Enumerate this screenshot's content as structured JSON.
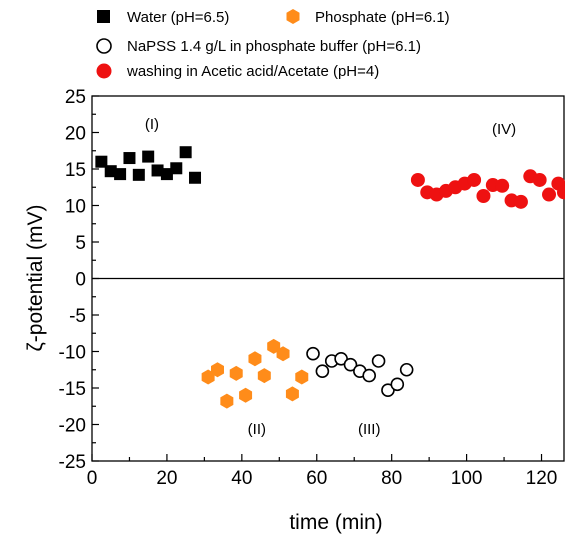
{
  "chart_data": {
    "type": "scatter",
    "xlabel": "time (min)",
    "ylabel": "ζ-potential (mV)",
    "xlim": [
      0,
      126
    ],
    "ylim": [
      -25,
      25
    ],
    "xticks": [
      0,
      20,
      40,
      60,
      80,
      100,
      120
    ],
    "yticks": [
      25,
      20,
      15,
      10,
      5,
      0,
      -5,
      -10,
      -15,
      -20,
      -25
    ],
    "zero_line": true,
    "grid": false,
    "legend_position": "top",
    "series": [
      {
        "name": "Water (pH=6.5)",
        "marker": "square",
        "color": "#000000",
        "fill": "#000000",
        "x": [
          2.5,
          5,
          7.5,
          10,
          12.5,
          15,
          17.5,
          20,
          22.5,
          25,
          27.5
        ],
        "y": [
          16.0,
          14.7,
          14.3,
          16.5,
          14.2,
          16.7,
          14.8,
          14.3,
          15.1,
          17.3,
          13.8
        ]
      },
      {
        "name": "Phosphate  (pH=6.1)",
        "marker": "hexagon",
        "color": "#FF8C1A",
        "fill": "#FF8C1A",
        "x": [
          31,
          33.5,
          36,
          38.5,
          41,
          43.5,
          46,
          48.5,
          51,
          53.5,
          56
        ],
        "y": [
          -13.5,
          -12.5,
          -16.8,
          -13.0,
          -16.0,
          -11.0,
          -13.3,
          -9.3,
          -10.3,
          -15.8,
          -13.5
        ]
      },
      {
        "name": "NaPSS 1.4 g/L in phosphate buffer (pH=6.1)",
        "marker": "circle-open",
        "color": "#000000",
        "fill": "#ffffff",
        "x": [
          59,
          61.5,
          64,
          66.5,
          69,
          71.5,
          74,
          76.5,
          79,
          81.5,
          84
        ],
        "y": [
          -10.3,
          -12.7,
          -11.3,
          -11.0,
          -11.8,
          -12.7,
          -13.3,
          -11.3,
          -15.3,
          -14.5,
          -12.5
        ]
      },
      {
        "name": "washing in Acetic acid/Acetate (pH=4)",
        "marker": "circle",
        "color": "#EE1111",
        "fill": "#EE1111",
        "x": [
          87,
          89.5,
          92,
          94.5,
          97,
          99.5,
          102,
          104.5,
          107,
          109.5,
          112,
          114.5,
          117,
          119.5,
          122,
          124.5,
          126
        ],
        "y": [
          13.5,
          11.8,
          11.5,
          12.0,
          12.5,
          13.0,
          13.5,
          11.3,
          12.8,
          12.7,
          10.7,
          10.5,
          14.0,
          13.5,
          11.5,
          13.0,
          11.8
        ]
      }
    ],
    "annotations": [
      {
        "text": "(I)",
        "x": 16,
        "y": 20.5
      },
      {
        "text": "(II)",
        "x": 44,
        "y": -21.3
      },
      {
        "text": "(III)",
        "x": 74,
        "y": -21.3
      },
      {
        "text": "(IV)",
        "x": 110,
        "y": 19.8
      }
    ]
  }
}
